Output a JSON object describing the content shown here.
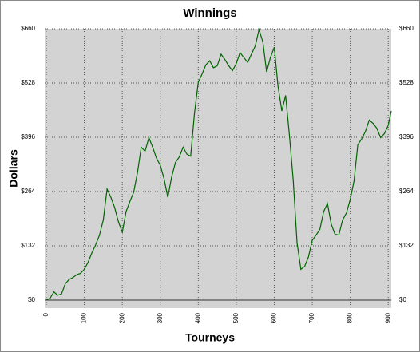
{
  "chart_data": {
    "type": "line",
    "title": "Winnings",
    "xlabel": "Tourneys",
    "ylabel": "Dollars",
    "x": [
      0,
      10,
      20,
      30,
      40,
      50,
      60,
      70,
      80,
      90,
      100,
      110,
      120,
      130,
      140,
      150,
      160,
      170,
      180,
      190,
      200,
      210,
      220,
      230,
      240,
      250,
      260,
      270,
      280,
      290,
      300,
      310,
      320,
      330,
      340,
      350,
      360,
      370,
      380,
      390,
      400,
      410,
      420,
      430,
      440,
      450,
      460,
      470,
      480,
      490,
      500,
      510,
      520,
      530,
      540,
      550,
      560,
      570,
      580,
      590,
      600,
      610,
      620,
      630,
      640,
      650,
      660,
      670,
      680,
      690,
      700,
      710,
      720,
      730,
      740,
      750,
      760,
      770,
      780,
      790,
      800,
      810,
      820,
      830,
      840,
      850,
      860,
      870,
      880,
      890,
      900,
      908
    ],
    "series": [
      {
        "name": "Winnings",
        "color": "#006400",
        "values": [
          0,
          5,
          20,
          12,
          15,
          40,
          50,
          55,
          62,
          65,
          75,
          92,
          115,
          135,
          158,
          195,
          270,
          250,
          225,
          190,
          165,
          215,
          240,
          262,
          310,
          372,
          362,
          395,
          372,
          345,
          328,
          295,
          250,
          300,
          335,
          348,
          372,
          355,
          350,
          455,
          530,
          550,
          572,
          582,
          565,
          570,
          598,
          585,
          570,
          558,
          575,
          602,
          590,
          578,
          598,
          618,
          658,
          628,
          555,
          590,
          615,
          520,
          460,
          498,
          400,
          290,
          140,
          75,
          82,
          105,
          145,
          158,
          172,
          215,
          235,
          185,
          160,
          158,
          195,
          212,
          245,
          290,
          378,
          392,
          410,
          438,
          430,
          418,
          395,
          405,
          425,
          460
        ]
      }
    ],
    "xlim": [
      0,
      908
    ],
    "xticks": [
      0,
      100,
      200,
      300,
      400,
      500,
      600,
      700,
      800,
      900
    ],
    "ylim": [
      0,
      660
    ],
    "yticks": [
      {
        "value": 0,
        "label": "$0"
      },
      {
        "value": 132,
        "label": "$132"
      },
      {
        "value": 264,
        "label": "$264"
      },
      {
        "value": 396,
        "label": "$396"
      },
      {
        "value": 528,
        "label": "$528"
      },
      {
        "value": 660,
        "label": "$660"
      }
    ],
    "grid": true
  }
}
